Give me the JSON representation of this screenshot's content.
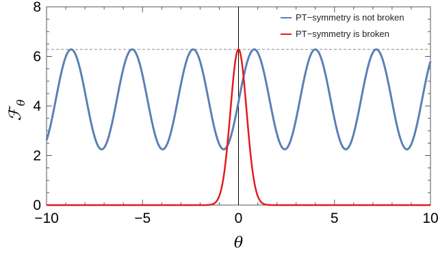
{
  "chart_data": {
    "type": "line",
    "xlabel": "θ",
    "ylabel_main": "ℱ",
    "ylabel_sub": "θ",
    "xlim": [
      -10,
      10
    ],
    "ylim": [
      0,
      8
    ],
    "x_ticks": [
      -10,
      -5,
      0,
      5,
      10
    ],
    "x_tick_labels": [
      "−10",
      "−5",
      "0",
      "5",
      "10"
    ],
    "y_ticks": [
      0,
      2,
      4,
      6,
      8
    ],
    "y_tick_labels": [
      "0",
      "2",
      "4",
      "6",
      "8"
    ],
    "reference_line": {
      "y": 6.283,
      "style": "dashed",
      "color": "#888888"
    },
    "vertical_axis_line": {
      "x": 0,
      "color": "#000000"
    },
    "legend_position": "top-right",
    "grid": false,
    "series": [
      {
        "name": "PT−symmetry is not broken",
        "color": "#5b7fb5",
        "shape": "periodic",
        "min": 2.25,
        "max": 6.283,
        "period": 3.18,
        "peak_x": [
          -8.72,
          -5.54,
          -2.36,
          0.82,
          4.0,
          7.18
        ],
        "samples": [
          [
            -10,
            2.55
          ],
          [
            -8.72,
            6.28
          ],
          [
            -7.13,
            2.25
          ],
          [
            -5.54,
            6.28
          ],
          [
            -3.95,
            2.25
          ],
          [
            -2.36,
            6.28
          ],
          [
            -0.77,
            2.25
          ],
          [
            0.82,
            6.28
          ],
          [
            2.41,
            2.25
          ],
          [
            4.0,
            6.28
          ],
          [
            5.59,
            2.25
          ],
          [
            7.18,
            6.28
          ],
          [
            8.77,
            2.25
          ],
          [
            10,
            4.0
          ]
        ]
      },
      {
        "name": "PT−symmetry is broken",
        "color": "#e41a1c",
        "shape": "peak",
        "peak_x": 0,
        "peak_y": 6.283,
        "baseline": 0,
        "samples": [
          [
            -10,
            0
          ],
          [
            -1.5,
            0.05
          ],
          [
            -1.0,
            0.55
          ],
          [
            -0.5,
            3.2
          ],
          [
            0,
            6.28
          ],
          [
            0.5,
            3.2
          ],
          [
            1.0,
            0.55
          ],
          [
            1.5,
            0.05
          ],
          [
            10,
            0
          ]
        ]
      }
    ]
  }
}
